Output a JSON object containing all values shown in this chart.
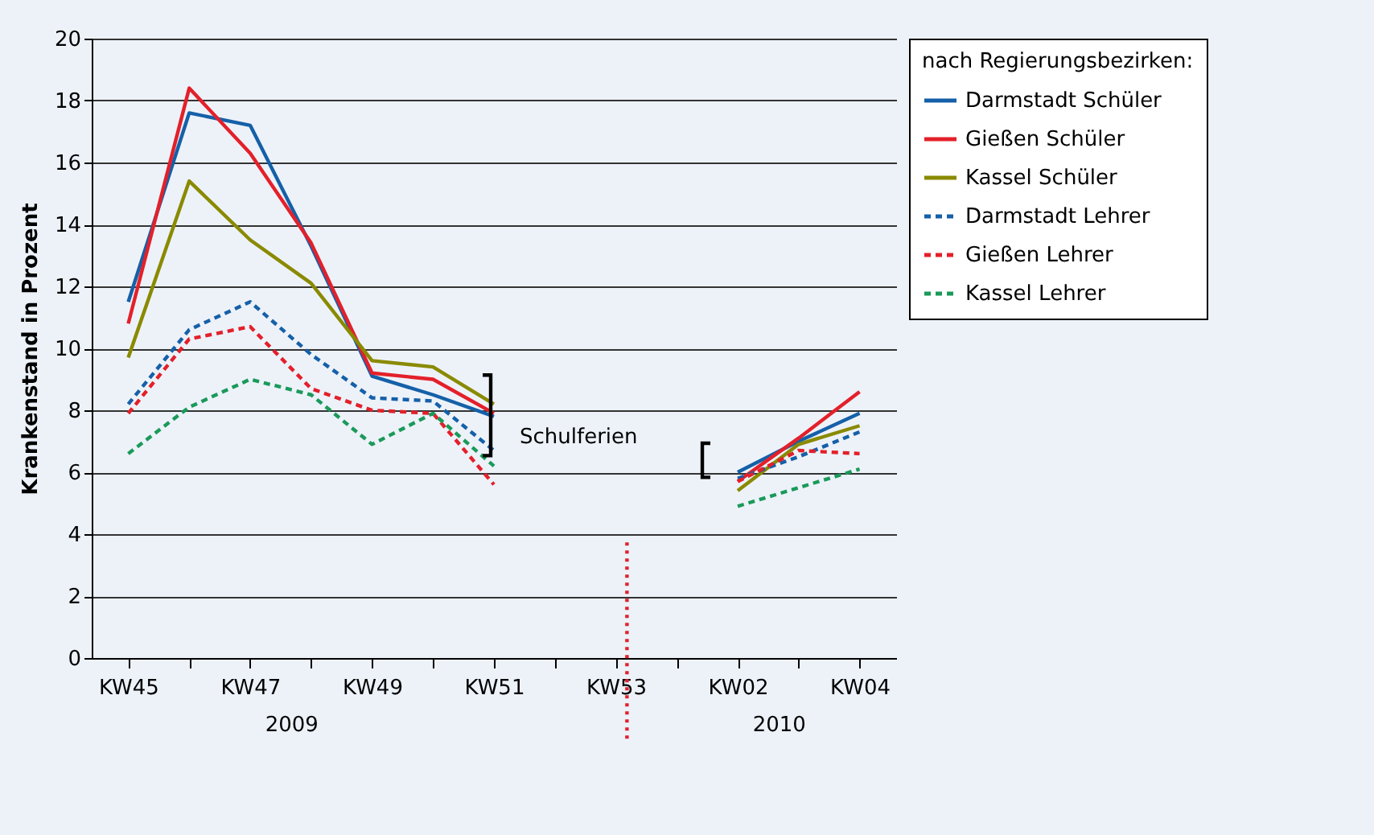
{
  "chart_data": {
    "type": "line",
    "ylabel": "Krankenstand in Prozent",
    "legend_title": "nach Regierungsbezirken:",
    "categories": [
      "KW45",
      null,
      "KW47",
      null,
      "KW49",
      null,
      "KW51",
      null,
      "KW53",
      null,
      "KW02",
      null,
      "KW04"
    ],
    "ylim": [
      0,
      20
    ],
    "yticks": [
      0,
      2,
      4,
      6,
      8,
      10,
      12,
      14,
      16,
      18,
      20
    ],
    "series": [
      {
        "name": "Darmstadt Schüler",
        "color": "#1560a8",
        "line_style": "solid",
        "values": [
          11.5,
          17.6,
          17.2,
          13.3,
          9.1,
          8.5,
          7.8,
          null,
          null,
          null,
          6.0,
          7.0,
          7.9
        ]
      },
      {
        "name": "Gießen Schüler",
        "color": "#e3202a",
        "line_style": "solid",
        "values": [
          10.8,
          18.4,
          16.3,
          13.4,
          9.2,
          9.0,
          7.9,
          null,
          null,
          null,
          5.7,
          7.1,
          8.6
        ]
      },
      {
        "name": "Kassel Schüler",
        "color": "#8a8a00",
        "line_style": "solid",
        "values": [
          9.7,
          15.4,
          13.5,
          12.1,
          9.6,
          9.4,
          8.2,
          null,
          null,
          null,
          5.4,
          6.9,
          7.5
        ]
      },
      {
        "name": "Darmstadt Lehrer",
        "color": "#1560a8",
        "line_style": "dashed",
        "values": [
          8.2,
          10.6,
          11.5,
          9.8,
          8.4,
          8.3,
          6.7,
          null,
          null,
          null,
          5.8,
          6.5,
          7.3
        ]
      },
      {
        "name": "Gießen Lehrer",
        "color": "#e3202a",
        "line_style": "dashed",
        "values": [
          7.9,
          10.3,
          10.7,
          8.7,
          8.0,
          7.9,
          5.6,
          null,
          null,
          null,
          5.7,
          6.7,
          6.6
        ]
      },
      {
        "name": "Kassel  Lehrer",
        "color": "#1a9a5a",
        "line_style": "dashed",
        "values": [
          6.6,
          8.1,
          9.0,
          8.5,
          6.9,
          7.9,
          6.2,
          null,
          null,
          null,
          4.9,
          5.5,
          6.1
        ]
      }
    ],
    "annotations": [
      "Schulferien",
      "2009",
      "2010"
    ],
    "grid": "y",
    "legend": "right",
    "marker": "none"
  }
}
